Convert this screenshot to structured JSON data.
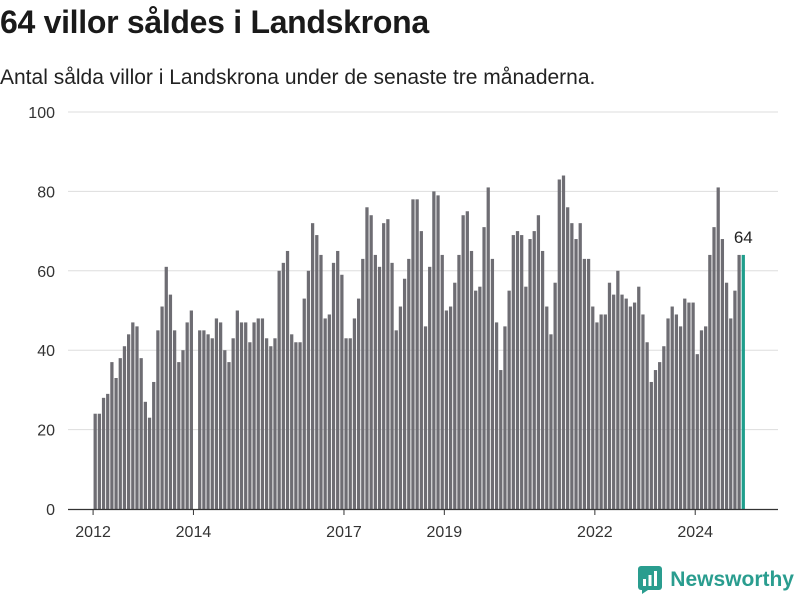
{
  "header": {
    "title": "64 villor såldes i Landskrona",
    "subtitle": "Antal sålda villor i Landskrona under de senaste tre månaderna."
  },
  "brand": {
    "name": "Newsworthy"
  },
  "colors": {
    "bar": "#6e6d73",
    "highlight": "#1f9e8c",
    "grid": "#dddddd",
    "axis": "#333333",
    "brand": "#2a9d8f"
  },
  "chart_data": {
    "type": "bar",
    "xlim": [
      2011.5,
      2025.65
    ],
    "ylim": [
      0,
      100
    ],
    "yticks": [
      0,
      20,
      40,
      60,
      80,
      100
    ],
    "xticks": [
      2012,
      2014,
      2017,
      2019,
      2022,
      2024
    ],
    "start_month": "2012-01",
    "grid": true,
    "highlight_label": "64",
    "values": [
      24,
      24,
      28,
      29,
      37,
      33,
      38,
      41,
      44,
      47,
      46,
      38,
      27,
      23,
      32,
      45,
      51,
      61,
      54,
      45,
      37,
      40,
      47,
      50,
      0,
      45,
      45,
      44,
      43,
      48,
      47,
      40,
      37,
      43,
      50,
      47,
      47,
      42,
      47,
      48,
      48,
      43,
      41,
      43,
      60,
      62,
      65,
      44,
      42,
      42,
      53,
      60,
      72,
      69,
      64,
      48,
      49,
      62,
      65,
      59,
      43,
      43,
      48,
      53,
      63,
      76,
      74,
      64,
      61,
      72,
      73,
      62,
      45,
      51,
      58,
      63,
      78,
      78,
      70,
      46,
      61,
      80,
      79,
      64,
      50,
      51,
      57,
      64,
      74,
      75,
      65,
      55,
      56,
      71,
      81,
      63,
      47,
      35,
      46,
      55,
      69,
      70,
      69,
      56,
      68,
      70,
      74,
      65,
      51,
      44,
      57,
      83,
      84,
      76,
      72,
      68,
      72,
      63,
      63,
      51,
      47,
      49,
      49,
      57,
      54,
      60,
      54,
      53,
      51,
      52,
      56,
      49,
      42,
      32,
      35,
      37,
      41,
      48,
      51,
      49,
      46,
      53,
      52,
      52,
      39,
      45,
      46,
      64,
      71,
      81,
      68,
      57,
      48,
      55,
      64,
      64
    ]
  }
}
